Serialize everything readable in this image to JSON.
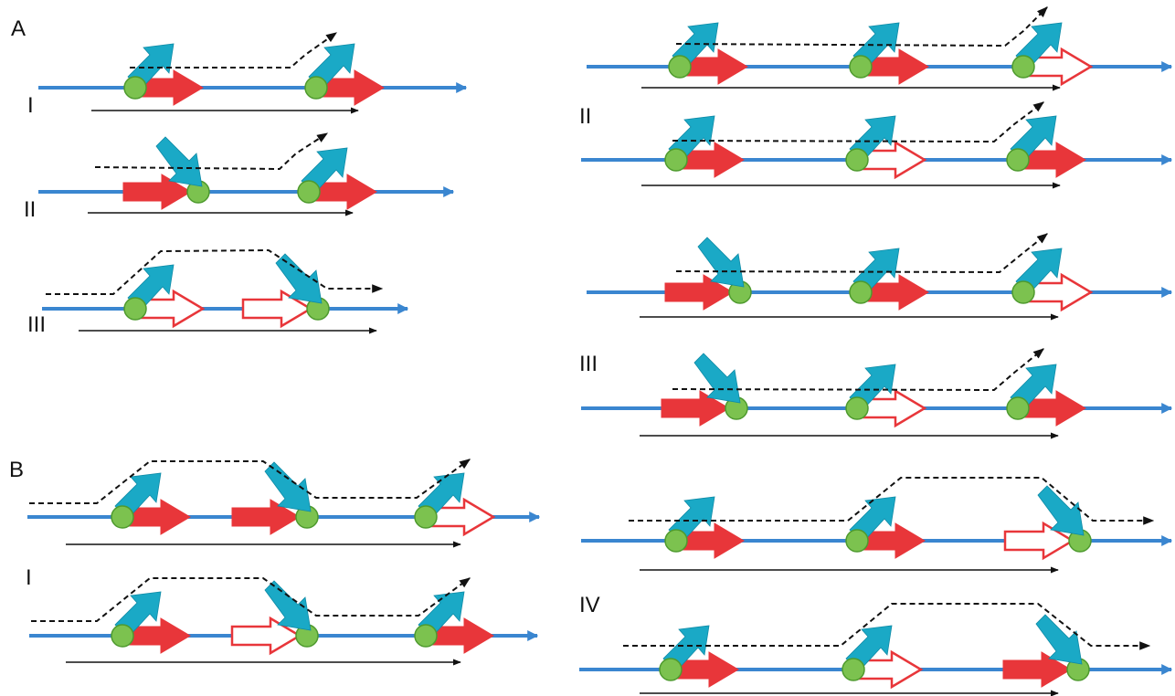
{
  "labels": {
    "panel_a": "A",
    "panel_b": "B",
    "a_i": "I",
    "a_ii": "II",
    "a_iii": "III",
    "b_i": "I",
    "r_ii": "II",
    "r_iii": "III",
    "r_iv": "IV"
  },
  "colors": {
    "dna_line": "#3a86d0",
    "gene_fill": "#e8363a",
    "gene_outline": "#e8363a",
    "promoter": "#1aa9c6",
    "circle_fill": "#7cc24f",
    "circle_stroke": "#4e9a2e",
    "transcript": "#111111"
  }
}
